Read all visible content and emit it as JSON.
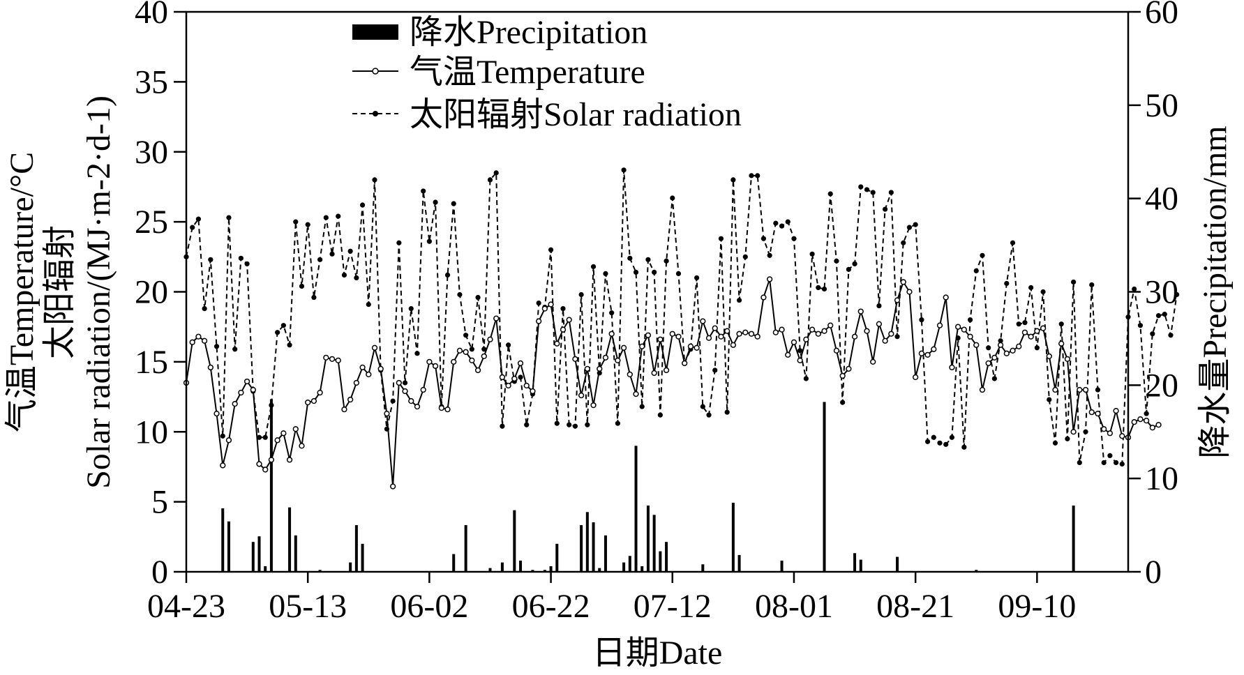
{
  "chart_data": {
    "type": "bar+line",
    "title": "",
    "xlabel": "日期Date",
    "ylabel_left_line1": "气温Temperature/°C",
    "ylabel_left_line2": "太阳辐射",
    "ylabel_left_line3": "Solar radiation/(MJ·m-2·d-1)",
    "ylabel_right": "降水量Precipitation/mm",
    "ylim_left": [
      0,
      40
    ],
    "ylim_right": [
      0,
      60
    ],
    "yticks_left": [
      0,
      5,
      10,
      15,
      20,
      25,
      30,
      35,
      40
    ],
    "yticks_right": [
      0,
      10,
      20,
      30,
      40,
      50,
      60
    ],
    "x_start": "04-23",
    "x_days": 155,
    "xtick_labels": [
      "04-23",
      "05-13",
      "06-02",
      "06-22",
      "07-12",
      "08-01",
      "08-21",
      "09-10"
    ],
    "xtick_days": [
      0,
      20,
      40,
      60,
      80,
      100,
      120,
      140
    ],
    "legend": {
      "position": "top-center",
      "entries": [
        "降水Precipitation",
        "气温Temperature",
        "太阳辐射Solar radiation"
      ]
    },
    "series": [
      {
        "name": "气温Temperature",
        "axis": "left",
        "style": "solid-open-circle",
        "values": [
          13.5,
          16.4,
          16.8,
          16.5,
          14.6,
          11.3,
          7.6,
          9.4,
          12.0,
          12.8,
          13.6,
          13.0,
          7.7,
          7.3,
          8.0,
          9.4,
          9.9,
          8.0,
          10.2,
          9.0,
          12.1,
          12.2,
          12.8,
          15.3,
          15.2,
          15.1,
          11.6,
          12.3,
          13.5,
          14.6,
          14.1,
          16.0,
          14.5,
          11.3,
          6.1,
          13.5,
          12.9,
          12.2,
          11.8,
          13.0,
          15.0,
          14.7,
          11.7,
          11.6,
          15.0,
          15.8,
          15.7,
          15.1,
          14.4,
          15.4,
          16.6,
          18.1,
          13.9,
          13.3,
          13.8,
          14.9,
          13.3,
          12.9,
          17.9,
          18.8,
          19.1,
          16.3,
          17.3,
          18.0,
          15.2,
          12.6,
          14.5,
          11.9,
          14.5,
          15.3,
          17.0,
          15.1,
          16.0,
          14.1,
          12.7,
          16.1,
          16.9,
          14.2,
          16.6,
          14.4,
          17.0,
          16.8,
          14.9,
          16.1,
          16.0,
          17.9,
          16.7,
          17.4,
          16.8,
          17.2,
          16.2,
          17.0,
          17.1,
          17.0,
          16.8,
          19.6,
          20.9,
          17.1,
          17.3,
          15.5,
          16.4,
          15.1,
          16.6,
          17.3,
          17.0,
          17.2,
          17.6,
          15.8,
          14.0,
          14.5,
          16.8,
          18.6,
          17.2,
          15.0,
          17.7,
          16.5,
          17.0,
          19.4,
          20.7,
          20.0,
          13.9,
          15.6,
          15.5,
          15.9,
          17.6,
          19.6,
          14.6,
          17.5,
          17.3,
          16.8,
          16.2,
          13.0,
          14.9,
          15.3,
          16.2,
          15.6,
          15.8,
          16.1,
          17.1,
          16.8,
          17.2,
          17.4,
          15.4,
          13.0,
          16.3,
          15.2,
          10.0,
          13.0,
          13.0,
          11.4,
          11.3,
          10.2,
          9.9,
          11.5,
          9.7,
          9.6,
          10.7,
          10.9,
          10.8,
          10.3,
          10.5
        ]
      },
      {
        "name": "太阳辐射Solar radiation",
        "axis": "left",
        "style": "dashed-filled-circle",
        "values": [
          22.5,
          24.6,
          25.2,
          18.8,
          22.3,
          16.1,
          9.7,
          25.3,
          15.9,
          22.4,
          22.0,
          12.9,
          9.6,
          9.6,
          11.9,
          17.1,
          17.6,
          16.2,
          25.0,
          20.4,
          24.8,
          19.6,
          22.3,
          25.3,
          22.7,
          25.4,
          21.2,
          22.9,
          21.0,
          26.2,
          19.1,
          28.0,
          14.4,
          10.2,
          12.2,
          23.5,
          13.5,
          18.8,
          15.6,
          27.2,
          23.6,
          26.4,
          11.8,
          21.2,
          26.3,
          19.8,
          16.9,
          15.9,
          19.6,
          15.9,
          28.0,
          28.5,
          10.4,
          16.2,
          13.6,
          13.9,
          10.5,
          12.7,
          19.2,
          18.9,
          23.0,
          10.6,
          18.8,
          10.5,
          10.4,
          19.8,
          10.5,
          21.8,
          14.2,
          21.3,
          18.5,
          10.6,
          28.7,
          22.4,
          21.4,
          11.8,
          22.3,
          21.4,
          11.2,
          22.2,
          26.7,
          21.3,
          14.9,
          15.9,
          21.0,
          11.8,
          11.2,
          14.4,
          23.8,
          11.4,
          28.0,
          19.4,
          22.5,
          28.3,
          28.3,
          23.8,
          22.6,
          24.9,
          24.7,
          25.0,
          23.8,
          15.8,
          13.8,
          22.7,
          20.3,
          20.2,
          27.0,
          22.2,
          12.1,
          21.6,
          22.0,
          27.5,
          27.3,
          27.1,
          19.0,
          25.9,
          27.1,
          16.8,
          23.5,
          24.6,
          24.8,
          18.0,
          9.3,
          9.6,
          9.2,
          9.1,
          9.6,
          16.7,
          8.9,
          18.0,
          21.5,
          22.6,
          16.0,
          13.8,
          16.5,
          20.6,
          23.5,
          17.7,
          17.8,
          20.3,
          16.0,
          20.0,
          12.3,
          9.2,
          17.7,
          9.5,
          20.7,
          7.8,
          10.0,
          20.5,
          13.0,
          7.8,
          8.3,
          7.8,
          7.7,
          18.2,
          20.2,
          17.6,
          11.3,
          17.0,
          18.3,
          18.4,
          16.9,
          19.8
        ]
      },
      {
        "name": "降水Precipitation",
        "axis": "right",
        "style": "bar",
        "values": [
          0,
          0,
          0,
          0,
          0,
          0,
          6.8,
          5.4,
          0,
          0,
          0,
          3.2,
          3.8,
          0.6,
          18.5,
          0,
          0,
          6.9,
          3.9,
          0,
          0,
          0,
          0.2,
          0,
          0,
          0,
          0,
          1.0,
          5.0,
          3.0,
          0,
          0,
          0,
          0,
          0,
          0,
          0,
          0,
          0,
          0,
          0,
          0,
          0,
          0,
          1.9,
          0,
          5.0,
          0,
          0,
          0,
          0.4,
          0,
          1.0,
          0,
          6.6,
          1.2,
          0,
          0.2,
          0,
          0.2,
          0.6,
          3.0,
          0,
          0,
          0,
          5.0,
          6.4,
          5.3,
          0.4,
          3.9,
          0,
          0,
          1.0,
          1.7,
          13.5,
          0.6,
          7.1,
          6.1,
          2.2,
          3.2,
          0,
          0,
          0,
          0,
          0,
          0.8,
          0,
          0,
          0,
          0,
          7.4,
          1.8,
          0,
          0,
          0,
          0,
          0,
          0,
          1.2,
          0,
          0,
          0,
          0,
          0,
          0,
          18.2,
          0,
          0,
          0,
          0,
          2.0,
          1.3,
          0,
          0,
          0,
          0,
          0,
          1.6,
          0,
          0,
          0,
          0,
          0,
          0,
          0,
          0,
          0,
          0,
          0,
          0,
          0.2,
          0,
          0,
          0,
          0,
          0,
          0,
          0,
          0,
          0,
          0,
          0,
          0,
          0,
          0,
          0,
          7.1,
          0,
          0,
          0,
          0,
          0,
          0,
          0,
          0,
          0,
          0,
          0
        ]
      }
    ]
  }
}
